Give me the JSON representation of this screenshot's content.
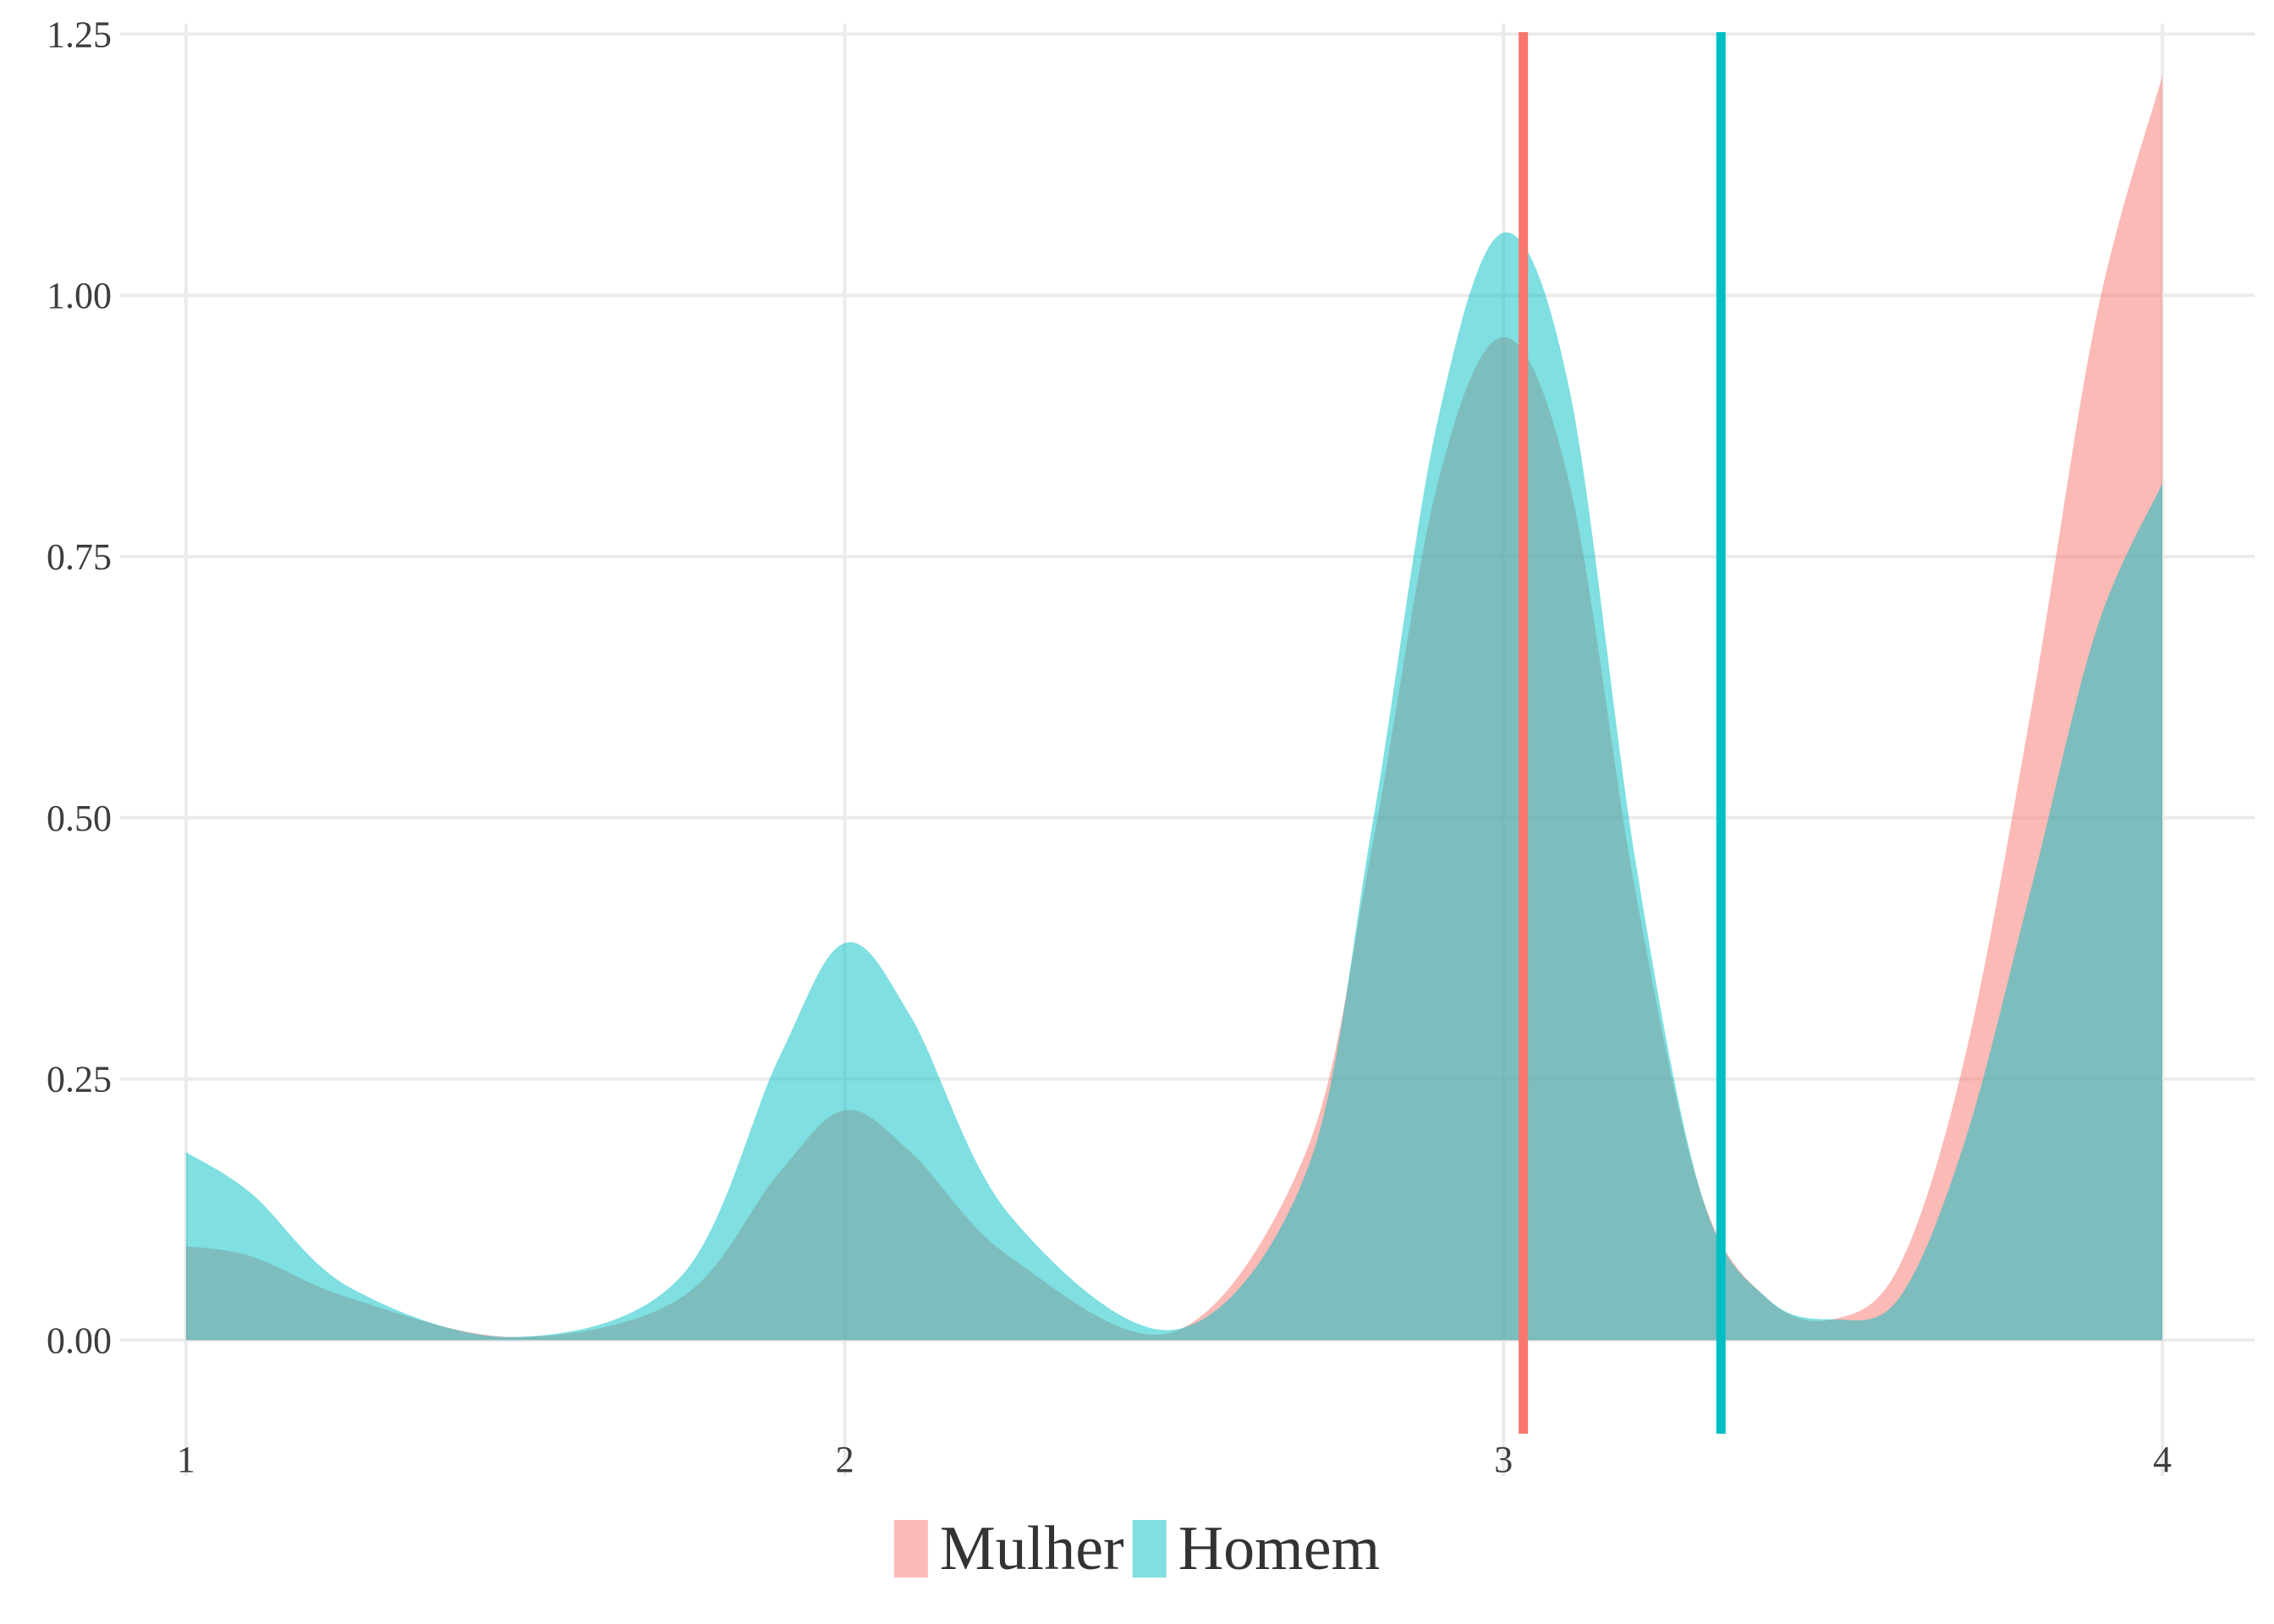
{
  "chart_data": {
    "type": "area",
    "title": "",
    "xlabel": "",
    "ylabel": "",
    "xlim": [
      0.9,
      4.14
    ],
    "ylim": [
      -0.13,
      1.26
    ],
    "x_ticks": [
      1,
      2,
      3,
      4
    ],
    "x_tick_labels": [
      "1",
      "2",
      "3",
      "4"
    ],
    "y_ticks": [
      0,
      0.25,
      0.5,
      0.75,
      1.0,
      1.25
    ],
    "y_tick_labels": [
      "0.00",
      "0.25",
      "0.50",
      "0.75",
      "1.00",
      "1.25"
    ],
    "grid": true,
    "legend_position": "bottom",
    "series": [
      {
        "name": "Mulher",
        "color": "#F8766D",
        "fill": "#F8766D",
        "fill_opacity": 0.5,
        "x": [
          1.0,
          1.1,
          1.25,
          1.5,
          1.75,
          1.9,
          2.0,
          2.1,
          2.25,
          2.5,
          2.7,
          2.8,
          2.9,
          3.0,
          3.1,
          3.2,
          3.3,
          3.4,
          3.5,
          3.6,
          3.7,
          3.8,
          3.9,
          4.0
        ],
        "y": [
          0.09,
          0.08,
          0.04,
          0.003,
          0.04,
          0.16,
          0.22,
          0.18,
          0.08,
          0.008,
          0.18,
          0.47,
          0.82,
          0.96,
          0.82,
          0.43,
          0.14,
          0.04,
          0.02,
          0.07,
          0.27,
          0.6,
          0.98,
          1.21
        ],
        "mean": 3.03
      },
      {
        "name": "Homem",
        "color": "#00BFC4",
        "fill": "#00BFC4",
        "fill_opacity": 0.5,
        "x": [
          1.0,
          1.1,
          1.25,
          1.5,
          1.75,
          1.9,
          2.0,
          2.1,
          2.25,
          2.5,
          2.7,
          2.8,
          2.9,
          3.0,
          3.1,
          3.2,
          3.3,
          3.4,
          3.5,
          3.6,
          3.7,
          3.8,
          3.9,
          4.0
        ],
        "y": [
          0.18,
          0.14,
          0.05,
          0.003,
          0.06,
          0.27,
          0.38,
          0.31,
          0.12,
          0.01,
          0.16,
          0.49,
          0.88,
          1.06,
          0.91,
          0.46,
          0.14,
          0.04,
          0.02,
          0.04,
          0.19,
          0.43,
          0.68,
          0.82
        ],
        "mean": 3.33
      }
    ]
  }
}
